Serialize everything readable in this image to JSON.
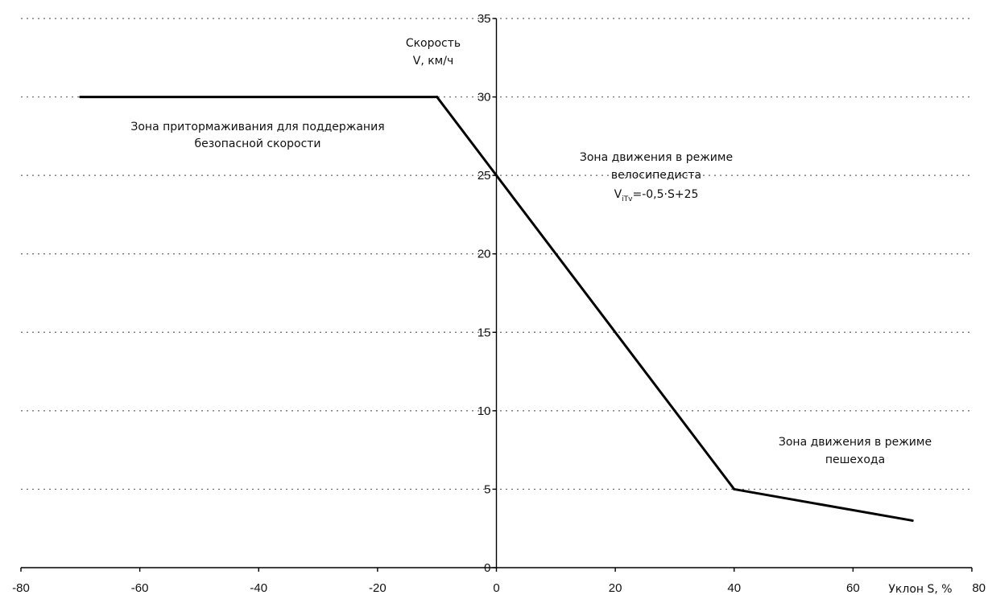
{
  "chart_data": {
    "type": "line",
    "xlabel": "Уклон S, %",
    "ylabel_line1": "Скорость",
    "ylabel_line2": "V, км/ч",
    "xlim": [
      -80,
      80
    ],
    "ylim": [
      0,
      35
    ],
    "x_ticks": [
      -80,
      -60,
      -40,
      -20,
      0,
      20,
      40,
      60,
      80
    ],
    "y_ticks": [
      0,
      5,
      10,
      15,
      20,
      25,
      30,
      35
    ],
    "grid": "horizontal dotted",
    "series": [
      {
        "x": [
          -70,
          -10,
          0,
          40,
          70
        ],
        "y": [
          30,
          30,
          25,
          5,
          3
        ]
      }
    ],
    "annotations": {
      "braking_line1": "Зона притормаживания для поддержания",
      "braking_line2": "безопасной скорости",
      "cyclist_line1": "Зона движения в режиме",
      "cyclist_line2": "велосипедиста",
      "formula_v": "V",
      "formula_sub": "iTv",
      "formula_rest": "=-0,5·S+25",
      "pedestrian_line1": "Зона движения в режиме",
      "pedestrian_line2": "пешехода"
    }
  }
}
